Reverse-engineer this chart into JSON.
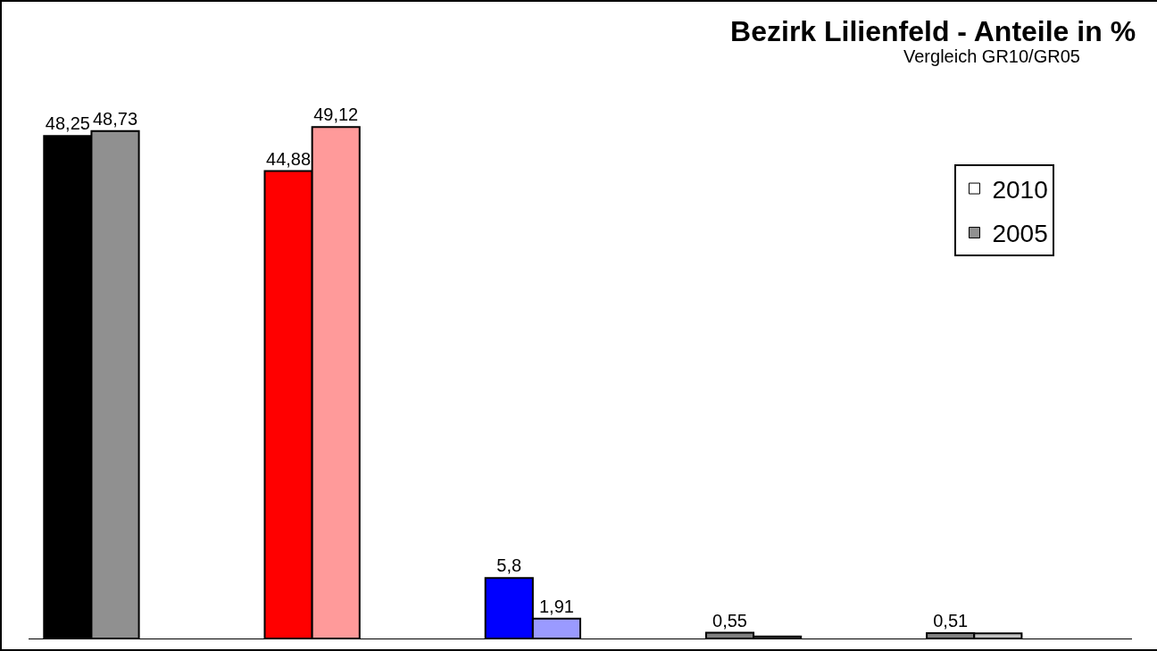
{
  "chart_data": {
    "type": "bar",
    "title": "Bezirk Lilienfeld - Anteile in %",
    "subtitle": "Vergleich GR10/GR05",
    "categories": [
      null,
      null,
      null,
      null,
      null
    ],
    "series": [
      {
        "name": "2010",
        "color": "#ffffff",
        "colors": [
          "#000000",
          "#ff0000",
          "#0000ff",
          "#808080",
          "#808080"
        ],
        "values": [
          48.25,
          44.88,
          5.8,
          0.55,
          0.51
        ],
        "value_labels": [
          "48,25",
          "44,88",
          "5,8",
          "0,55",
          "0,51"
        ]
      },
      {
        "name": "2005",
        "color": "#909090",
        "colors": [
          "#909090",
          "#ff9a9a",
          "#9a9aff",
          "#c0c0c0",
          "#c0c0c0"
        ],
        "values": [
          48.73,
          49.12,
          1.91,
          0.2,
          0.5
        ],
        "value_labels": [
          "48,73",
          "49,12",
          "1,91",
          null,
          null
        ]
      }
    ],
    "grid": false,
    "legend": "top right"
  }
}
